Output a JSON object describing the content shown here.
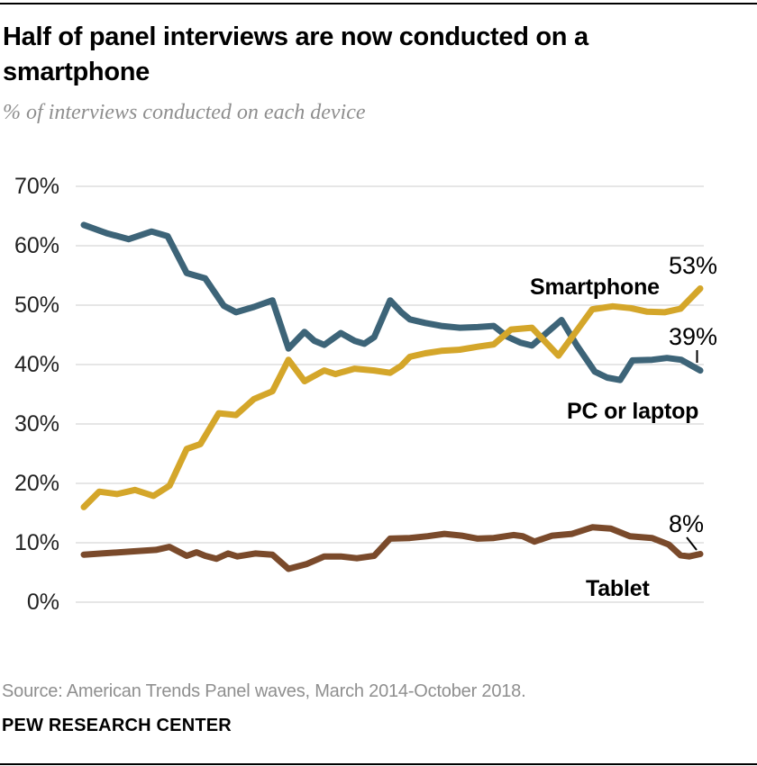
{
  "header": {
    "title": "Half of panel interviews are now conducted on a smartphone",
    "subtitle": "% of interviews conducted on each device"
  },
  "footer": {
    "source": "Source: American Trends Panel waves, March 2014-October 2018.",
    "brand": "PEW RESEARCH CENTER"
  },
  "chart_data": {
    "type": "line",
    "title": "Half of panel interviews are now conducted on a smartphone",
    "subtitle": "% of interviews conducted on each device",
    "ylabel": "% of interviews",
    "ylim": [
      0,
      70
    ],
    "grid": true,
    "gridline_color": "#cccccc",
    "x_axis_labels": [],
    "x_range_note": "March 2014-October 2018 (wave order, left to right; no x tick labels shown)",
    "yticks": [
      {
        "v": 70,
        "label": "70%"
      },
      {
        "v": 60,
        "label": "60%"
      },
      {
        "v": 50,
        "label": "50%"
      },
      {
        "v": 40,
        "label": "40%"
      },
      {
        "v": 30,
        "label": "30%"
      },
      {
        "v": 20,
        "label": "20%"
      },
      {
        "v": 10,
        "label": "10%"
      },
      {
        "v": 0,
        "label": "0%"
      }
    ],
    "series": [
      {
        "name": "Smartphone",
        "color": "#D4A62A",
        "end_label": "53%",
        "points": [
          [
            0,
            16
          ],
          [
            0.025,
            18.6
          ],
          [
            0.054,
            18.2
          ],
          [
            0.083,
            18.9
          ],
          [
            0.113,
            17.9
          ],
          [
            0.139,
            19.6
          ],
          [
            0.167,
            25.8
          ],
          [
            0.189,
            26.6
          ],
          [
            0.219,
            31.8
          ],
          [
            0.247,
            31.5
          ],
          [
            0.276,
            34.2
          ],
          [
            0.306,
            35.5
          ],
          [
            0.332,
            40.8
          ],
          [
            0.358,
            37.2
          ],
          [
            0.39,
            39
          ],
          [
            0.408,
            38.4
          ],
          [
            0.439,
            39.3
          ],
          [
            0.471,
            39
          ],
          [
            0.497,
            38.6
          ],
          [
            0.515,
            39.8
          ],
          [
            0.529,
            41.3
          ],
          [
            0.554,
            41.9
          ],
          [
            0.58,
            42.3
          ],
          [
            0.61,
            42.5
          ],
          [
            0.639,
            43
          ],
          [
            0.665,
            43.4
          ],
          [
            0.693,
            45.9
          ],
          [
            0.727,
            46.2
          ],
          [
            0.77,
            41.5
          ],
          [
            0.825,
            49.3
          ],
          [
            0.858,
            49.8
          ],
          [
            0.887,
            49.5
          ],
          [
            0.914,
            48.9
          ],
          [
            0.942,
            48.8
          ],
          [
            0.968,
            49.4
          ],
          [
            1,
            52.8
          ]
        ]
      },
      {
        "name": "PC or laptop",
        "color": "#3D6478",
        "end_label": "39%",
        "points": [
          [
            0,
            63.5
          ],
          [
            0.037,
            62.1
          ],
          [
            0.073,
            61.1
          ],
          [
            0.11,
            62.4
          ],
          [
            0.136,
            61.6
          ],
          [
            0.167,
            55.4
          ],
          [
            0.197,
            54.5
          ],
          [
            0.227,
            49.9
          ],
          [
            0.247,
            48.8
          ],
          [
            0.276,
            49.7
          ],
          [
            0.306,
            50.8
          ],
          [
            0.332,
            42.7
          ],
          [
            0.358,
            45.5
          ],
          [
            0.374,
            44
          ],
          [
            0.39,
            43.3
          ],
          [
            0.417,
            45.3
          ],
          [
            0.439,
            44
          ],
          [
            0.455,
            43.5
          ],
          [
            0.471,
            44.6
          ],
          [
            0.497,
            50.8
          ],
          [
            0.515,
            48.8
          ],
          [
            0.529,
            47.6
          ],
          [
            0.554,
            47
          ],
          [
            0.58,
            46.5
          ],
          [
            0.61,
            46.2
          ],
          [
            0.639,
            46.3
          ],
          [
            0.665,
            46.5
          ],
          [
            0.687,
            44.7
          ],
          [
            0.708,
            43.7
          ],
          [
            0.727,
            43.2
          ],
          [
            0.775,
            47.5
          ],
          [
            0.8,
            43.2
          ],
          [
            0.829,
            38.8
          ],
          [
            0.849,
            37.8
          ],
          [
            0.87,
            37.4
          ],
          [
            0.89,
            40.7
          ],
          [
            0.922,
            40.8
          ],
          [
            0.946,
            41.1
          ],
          [
            0.969,
            40.8
          ],
          [
            1,
            39
          ]
        ]
      },
      {
        "name": "Tablet",
        "color": "#7A4A2B",
        "end_label": "8%",
        "points": [
          [
            0,
            8
          ],
          [
            0.029,
            8.2
          ],
          [
            0.073,
            8.5
          ],
          [
            0.117,
            8.8
          ],
          [
            0.139,
            9.3
          ],
          [
            0.167,
            7.8
          ],
          [
            0.183,
            8.4
          ],
          [
            0.197,
            7.8
          ],
          [
            0.215,
            7.3
          ],
          [
            0.234,
            8.2
          ],
          [
            0.249,
            7.7
          ],
          [
            0.278,
            8.2
          ],
          [
            0.306,
            8
          ],
          [
            0.332,
            5.6
          ],
          [
            0.361,
            6.4
          ],
          [
            0.39,
            7.7
          ],
          [
            0.417,
            7.7
          ],
          [
            0.443,
            7.4
          ],
          [
            0.471,
            7.8
          ],
          [
            0.497,
            10.7
          ],
          [
            0.529,
            10.8
          ],
          [
            0.558,
            11.1
          ],
          [
            0.585,
            11.5
          ],
          [
            0.613,
            11.2
          ],
          [
            0.639,
            10.7
          ],
          [
            0.665,
            10.8
          ],
          [
            0.697,
            11.3
          ],
          [
            0.712,
            11.1
          ],
          [
            0.731,
            10.2
          ],
          [
            0.76,
            11.2
          ],
          [
            0.792,
            11.5
          ],
          [
            0.825,
            12.6
          ],
          [
            0.855,
            12.4
          ],
          [
            0.886,
            11.1
          ],
          [
            0.922,
            10.8
          ],
          [
            0.949,
            9.7
          ],
          [
            0.968,
            7.9
          ],
          [
            0.982,
            7.7
          ],
          [
            1,
            8.1
          ]
        ]
      }
    ],
    "legend_position": "inline-annotations"
  }
}
